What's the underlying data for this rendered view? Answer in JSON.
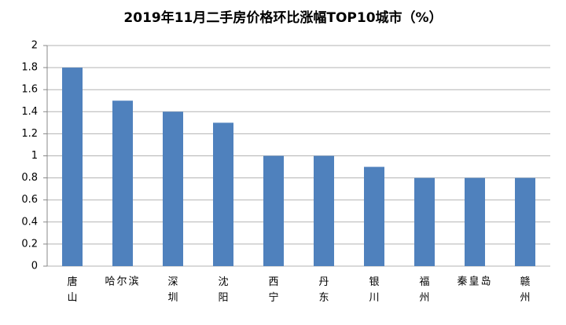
{
  "chart_data": {
    "type": "bar",
    "title": "2019年11月二手房价格环比涨幅TOP10城市（%）",
    "categories": [
      "唐山",
      "哈尔滨",
      "深圳",
      "沈阳",
      "西宁",
      "丹东",
      "银川",
      "福州",
      "秦皇岛",
      "赣州"
    ],
    "values": [
      1.8,
      1.5,
      1.4,
      1.3,
      1.0,
      1.0,
      0.9,
      0.8,
      0.8,
      0.8
    ],
    "color": "#4f81bd",
    "ylim": [
      0,
      2
    ],
    "yticks": [
      0,
      0.2,
      0.4,
      0.6,
      0.8,
      1,
      1.2,
      1.4,
      1.6,
      1.8,
      2
    ],
    "grid": true
  }
}
